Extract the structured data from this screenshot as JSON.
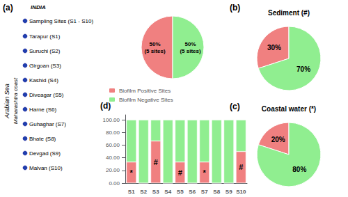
{
  "chart_data": [
    {
      "type": "pie",
      "panel": "(a)",
      "categories": [
        "Biofilm Positive Sites",
        "Biofilm Negative Sites"
      ],
      "values": [
        50,
        50
      ],
      "value_labels": [
        "50%\n(5 sites)",
        "50%\n(5 sites)"
      ],
      "colors": [
        "#F08080",
        "#90EE90"
      ],
      "legend": "bottom",
      "annotations": [
        "INDIA",
        "Arabian Sea",
        "Maharashtra coast"
      ],
      "markers": {
        "name": "Sampling Sites (S1 - S10)",
        "color": "#1E40AF",
        "marker": "circle",
        "labels": [
          "Tarapur (S1)",
          "Suruchi (S2)",
          "Girgoan (S3)",
          "Kashid (S4)",
          "Diveagar (S5)",
          "Harne (S6)",
          "Guhaghar (S7)",
          "Bhate (S8)",
          "Devgad (S9)",
          "Malvan (S10)"
        ]
      }
    },
    {
      "type": "pie",
      "panel": "(b)",
      "title": "Sediment (#)",
      "values": [
        30,
        70
      ],
      "value_labels": [
        "30%",
        "70%"
      ],
      "colors": [
        "#F08080",
        "#90EE90"
      ]
    },
    {
      "type": "pie",
      "panel": "(c)",
      "title": "Coastal water (*)",
      "values": [
        20,
        80
      ],
      "value_labels": [
        "20%",
        "80%"
      ],
      "colors": [
        "#F08080",
        "#90EE90"
      ]
    },
    {
      "type": "bar",
      "panel": "(d)",
      "categories": [
        "S1",
        "S2",
        "S3",
        "S4",
        "S5",
        "S6",
        "S7",
        "S8",
        "S9",
        "S10"
      ],
      "series": [
        {
          "color": "#F08080",
          "values": [
            33.33,
            0,
            66.67,
            0,
            33.33,
            0,
            33.33,
            0,
            0,
            50.0
          ],
          "annotations": [
            "*",
            null,
            "#",
            null,
            "#",
            null,
            "*",
            null,
            null,
            "#"
          ]
        },
        {
          "color": "#90EE90",
          "values": [
            66.67,
            100,
            33.33,
            100,
            66.67,
            100,
            66.67,
            100,
            100,
            50.0
          ]
        }
      ],
      "stacked": true,
      "ylim": [
        0,
        108
      ],
      "yticks": [
        {
          "value": 0,
          "label": "0.00"
        },
        {
          "value": 20,
          "label": "20.00"
        },
        {
          "value": 40,
          "label": "40.00"
        },
        {
          "value": 60,
          "label": "60.00"
        },
        {
          "value": 80,
          "label": "80.00"
        },
        {
          "value": 100,
          "label": "100.00"
        }
      ],
      "grid": false
    }
  ]
}
